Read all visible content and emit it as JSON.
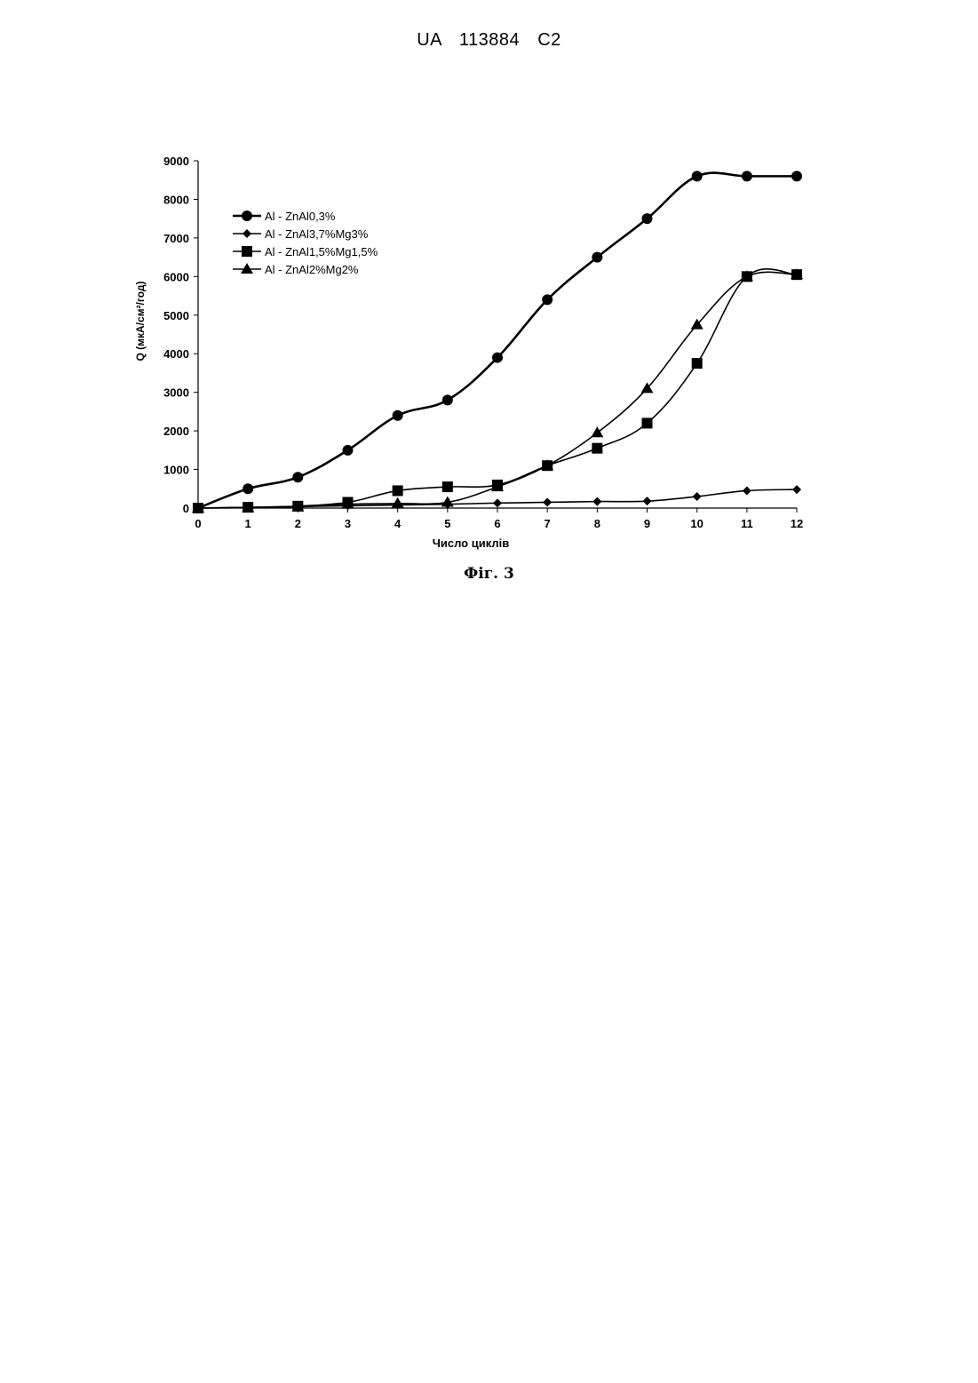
{
  "page": {
    "header": "UA 113884 C2",
    "caption": "Фіг. 3"
  },
  "chart_data": {
    "type": "line",
    "title": "",
    "xlabel": "Число циклів",
    "ylabel": "Q (мкА/см²/год)",
    "x": [
      0,
      1,
      2,
      3,
      4,
      5,
      6,
      7,
      8,
      9,
      10,
      11,
      12
    ],
    "xlim": [
      0,
      12
    ],
    "ylim": [
      0,
      9000
    ],
    "yticks": [
      0,
      1000,
      2000,
      3000,
      4000,
      5000,
      6000,
      7000,
      8000,
      9000
    ],
    "grid": false,
    "legend": "top-left",
    "series": [
      {
        "name": "Al - ZnAl0,3%",
        "marker": "circle",
        "values": [
          0,
          500,
          800,
          1500,
          2400,
          2800,
          3900,
          5400,
          6500,
          7500,
          8600,
          8600,
          8600
        ]
      },
      {
        "name": "Al - ZnAl3,7%Mg3%",
        "marker": "diamond",
        "values": [
          0,
          20,
          40,
          60,
          80,
          100,
          130,
          150,
          170,
          180,
          300,
          450,
          480
        ]
      },
      {
        "name": "Al - ZnAl1,5%Mg1,5%",
        "marker": "square",
        "values": [
          0,
          20,
          50,
          150,
          450,
          550,
          600,
          1100,
          1550,
          2200,
          3750,
          6000,
          6050
        ]
      },
      {
        "name": "Al - ZnAl2%Mg2%",
        "marker": "triangle",
        "values": [
          0,
          10,
          30,
          100,
          120,
          150,
          550,
          1100,
          1950,
          3100,
          4750,
          6000,
          6050
        ]
      }
    ]
  }
}
